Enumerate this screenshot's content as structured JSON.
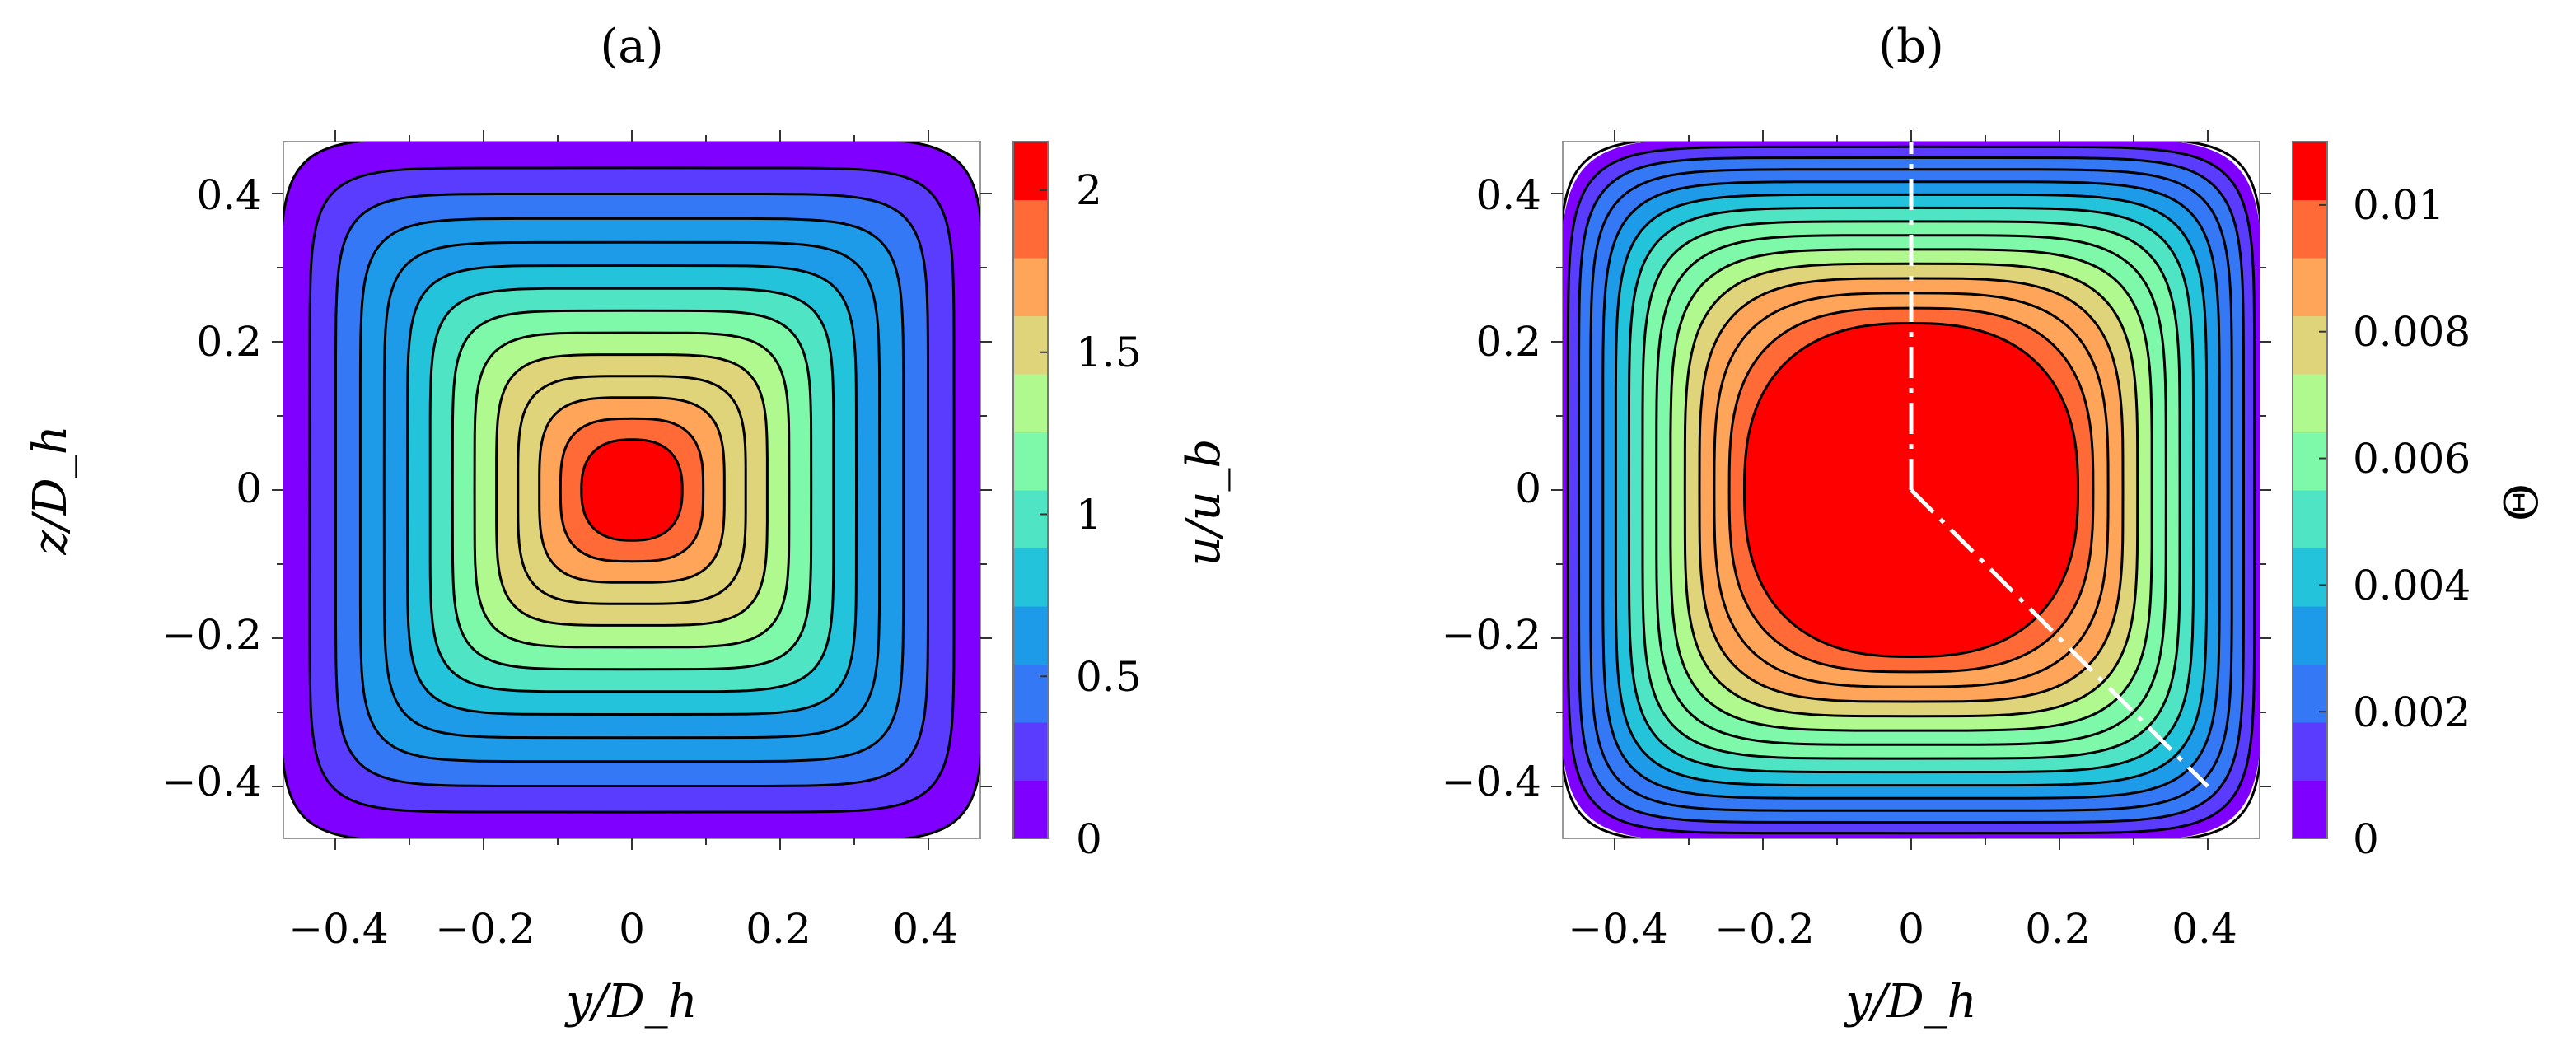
{
  "chart_data": [
    {
      "type": "heatmap",
      "panel_label": "(a)",
      "xlabel": "y/D_h",
      "ylabel": "z/D_h",
      "colorbar_label": "u/u_b",
      "x_ticks": [
        "−0.4",
        "−0.2",
        "0",
        "0.2",
        "0.4"
      ],
      "y_ticks": [
        "0.4",
        "0.2",
        "0",
        "−0.2",
        "−0.4"
      ],
      "xlim": [
        -0.47,
        0.47
      ],
      "ylim": [
        -0.47,
        0.47
      ],
      "colorbar_ticks": [
        "0",
        "0.5",
        "1",
        "1.5",
        "2"
      ],
      "colorbar_range": [
        0,
        2.15
      ],
      "contour_levels": [
        0.15,
        0.3,
        0.45,
        0.6,
        0.75,
        0.9,
        1.05,
        1.2,
        1.35,
        1.5,
        1.65,
        1.8,
        1.95
      ],
      "peak_value": 2.1,
      "grid": false
    },
    {
      "type": "heatmap",
      "panel_label": "(b)",
      "xlabel": "y/D_h",
      "ylabel": "",
      "colorbar_label": "Θ",
      "x_ticks": [
        "−0.4",
        "−0.2",
        "0",
        "0.2",
        "0.4"
      ],
      "y_ticks": [
        "0.4",
        "0.2",
        "0",
        "−0.2",
        "−0.4"
      ],
      "xlim": [
        -0.47,
        0.47
      ],
      "ylim": [
        -0.47,
        0.47
      ],
      "colorbar_ticks": [
        "0",
        "0.002",
        "0.004",
        "0.006",
        "0.008",
        "0.01"
      ],
      "colorbar_range": [
        0,
        0.011
      ],
      "contour_levels": [
        0.0007,
        0.0014,
        0.0021,
        0.0028,
        0.0035,
        0.0042,
        0.0049,
        0.0056,
        0.0063,
        0.007,
        0.0077,
        0.0084,
        0.0091,
        0.0098
      ],
      "peak_value": 0.0105,
      "sample_lines": [
        {
          "from": [
            0,
            0
          ],
          "to": [
            0,
            0.47
          ],
          "style": "dash-dot",
          "color": "#ffffff"
        },
        {
          "from": [
            0,
            0
          ],
          "to": [
            0.4,
            -0.4
          ],
          "style": "dash-dot",
          "color": "#ffffff"
        }
      ],
      "grid": false
    }
  ],
  "colors": {
    "colormap": [
      "#7f00ff",
      "#5a3cfe",
      "#3478f5",
      "#1e9be8",
      "#23c4db",
      "#4fe5c4",
      "#7ef9a9",
      "#b0f98f",
      "#e0d47b",
      "#ffa55a",
      "#ff6a36",
      "#ff0000"
    ],
    "contour": "#000000",
    "frame": "#999999"
  }
}
